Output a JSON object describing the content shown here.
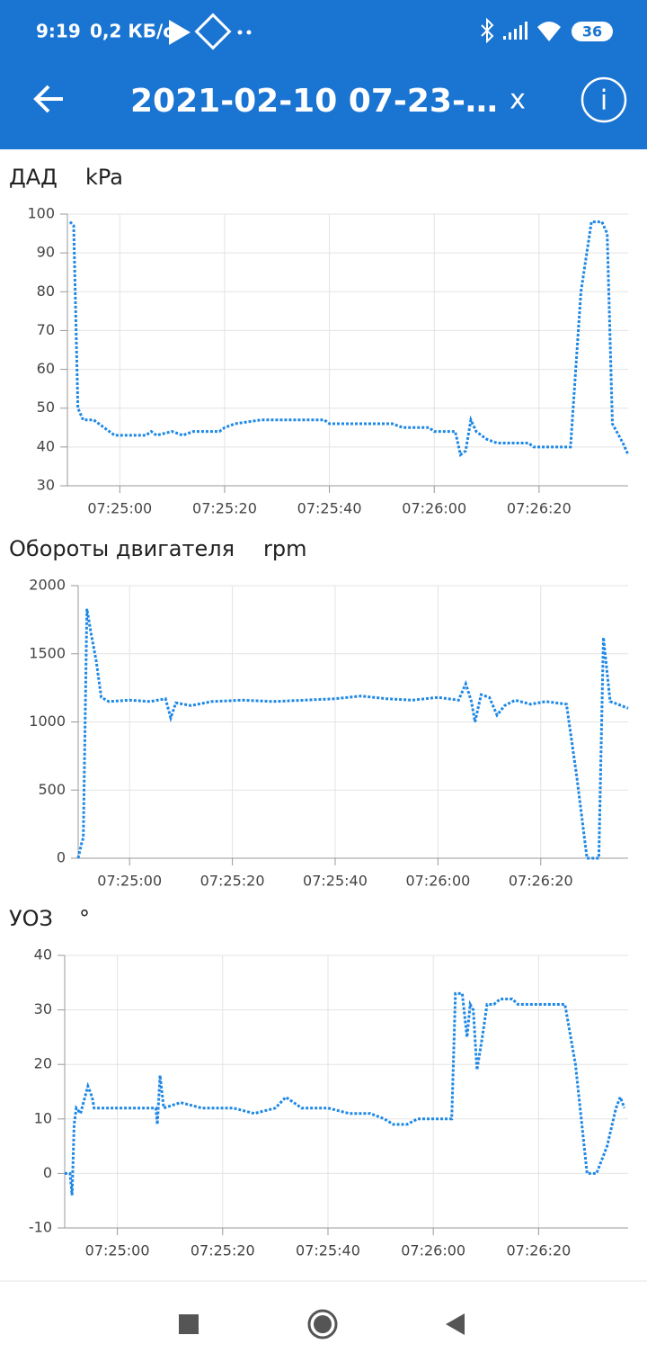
{
  "status_bar": {
    "time": "9:19",
    "speed": "0,2 КБ/с",
    "battery": "36"
  },
  "app_bar": {
    "title": "2021-02-10 07-23-…",
    "close": "x",
    "info": "i"
  },
  "chart_data": [
    {
      "type": "line",
      "title": "ДАД",
      "unit": "kPa",
      "color": "#1e88e5",
      "grid": true,
      "xlim": [
        26690,
        26797
      ],
      "ylim": [
        30,
        100
      ],
      "yticks": [
        30,
        40,
        50,
        60,
        70,
        80,
        90,
        100
      ],
      "xticks": [
        {
          "value": 26700,
          "label": "07:25:00"
        },
        {
          "value": 26720,
          "label": "07:25:20"
        },
        {
          "value": 26740,
          "label": "07:25:40"
        },
        {
          "value": 26760,
          "label": "07:26:00"
        },
        {
          "value": 26780,
          "label": "07:26:20"
        }
      ],
      "x": [
        26690.5,
        26691.2,
        26692,
        26693,
        26695,
        26696,
        26697,
        26698,
        26699,
        26705,
        26706,
        26707,
        26710,
        26712,
        26714,
        26719,
        26720,
        26722,
        26727,
        26739,
        26740,
        26752,
        26754,
        26759,
        26760,
        26764,
        26765,
        26766,
        26767,
        26768,
        26770,
        26772,
        26778,
        26779,
        26786,
        26788,
        26790,
        26792,
        26793,
        26794,
        26796,
        26797
      ],
      "values": [
        98,
        97,
        50,
        47,
        47,
        46,
        45,
        44,
        43,
        43,
        44,
        43,
        44,
        43,
        44,
        44,
        45,
        46,
        47,
        47,
        46,
        46,
        45,
        45,
        44,
        44,
        38,
        39,
        47,
        44,
        42,
        41,
        41,
        40,
        40,
        80,
        98,
        98,
        95,
        46,
        41,
        38
      ]
    },
    {
      "type": "line",
      "title": "Обороты двигателя",
      "unit": "rpm",
      "color": "#1e88e5",
      "grid": true,
      "xlim": [
        26690,
        26797
      ],
      "ylim": [
        0,
        2000
      ],
      "yticks": [
        0,
        500,
        1000,
        1500,
        2000
      ],
      "xticks": [
        {
          "value": 26700,
          "label": "07:25:00"
        },
        {
          "value": 26720,
          "label": "07:25:20"
        },
        {
          "value": 26740,
          "label": "07:25:40"
        },
        {
          "value": 26760,
          "label": "07:26:00"
        },
        {
          "value": 26780,
          "label": "07:26:20"
        }
      ],
      "x": [
        26690,
        26690.6,
        26691,
        26691.7,
        26692.5,
        26693.5,
        26694.5,
        26696,
        26700,
        26704,
        26707,
        26708,
        26709,
        26712,
        26716,
        26722,
        26728,
        26734,
        26740,
        26745,
        26750,
        26755,
        26760,
        26764,
        26765.4,
        26766.5,
        26767.2,
        26768.4,
        26770,
        26771.5,
        26773,
        26775,
        26778,
        26781,
        26785,
        26787,
        26789,
        26791.3,
        26792.2,
        26793.5,
        26795,
        26797
      ],
      "values": [
        0,
        100,
        150,
        1830,
        1650,
        1450,
        1180,
        1150,
        1160,
        1150,
        1170,
        1030,
        1140,
        1120,
        1150,
        1160,
        1150,
        1160,
        1170,
        1190,
        1170,
        1160,
        1180,
        1160,
        1280,
        1150,
        1000,
        1200,
        1180,
        1050,
        1120,
        1160,
        1130,
        1150,
        1130,
        600,
        0,
        0,
        1620,
        1150,
        1130,
        1100
      ]
    },
    {
      "type": "line",
      "title": "УОЗ",
      "unit": "°",
      "color": "#1e88e5",
      "grid": true,
      "xlim": [
        26690,
        26797
      ],
      "ylim": [
        -10,
        40
      ],
      "yticks": [
        -10,
        0,
        10,
        20,
        30,
        40
      ],
      "xticks": [
        {
          "value": 26700,
          "label": "07:25:00"
        },
        {
          "value": 26720,
          "label": "07:25:20"
        },
        {
          "value": 26740,
          "label": "07:25:40"
        },
        {
          "value": 26760,
          "label": "07:26:00"
        },
        {
          "value": 26780,
          "label": "07:26:20"
        }
      ],
      "x": [
        26690,
        26691,
        26691.4,
        26691.8,
        26692.2,
        26693,
        26694.4,
        26695.2,
        26695.6,
        26700,
        26704,
        26707.3,
        26707.6,
        26708.1,
        26708.8,
        26712,
        26716,
        26722,
        26726,
        26730,
        26732,
        26735,
        26740,
        26744,
        26748,
        26750.7,
        26752.4,
        26755,
        26757,
        26759.2,
        26763.5,
        26764.2,
        26765.5,
        26766.4,
        26767,
        26767.6,
        26768.3,
        26769.3,
        26770.2,
        26771.5,
        26772.7,
        26775,
        26776.1,
        26785,
        26787,
        26789.2,
        26791,
        26793,
        26794.7,
        26795.5,
        26796.3
      ],
      "values": [
        0,
        0,
        -4,
        9,
        12,
        11,
        16,
        14,
        12,
        12,
        12,
        12,
        9,
        18,
        12,
        13,
        12,
        12,
        11,
        12,
        14,
        12,
        12,
        11,
        11,
        10,
        9,
        9,
        10,
        10,
        10,
        33,
        33,
        25,
        31,
        30,
        19,
        25,
        31,
        31,
        32,
        32,
        31,
        31,
        20,
        0,
        0,
        5,
        12,
        14,
        12
      ]
    }
  ]
}
